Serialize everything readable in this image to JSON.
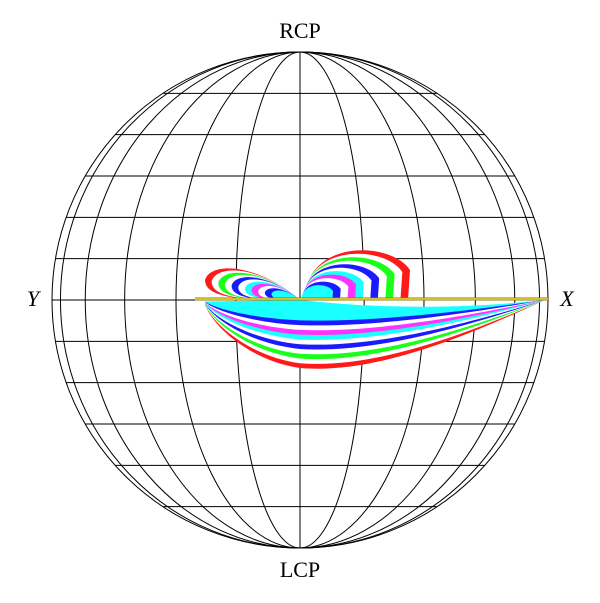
{
  "labels": {
    "top": "RCP",
    "bottom": "LCP",
    "left": "Y",
    "right": "X"
  }
}
